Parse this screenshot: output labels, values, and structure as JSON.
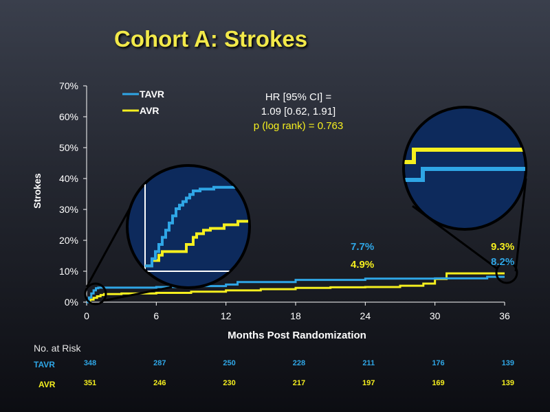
{
  "title": "Cohort A: Strokes",
  "colors": {
    "tavr": "#2fa6e6",
    "avr": "#f5ef1f",
    "circle_fill": "#0d2a5c",
    "axis_text": "#ffffff"
  },
  "chart_data": {
    "type": "line",
    "title": "Cohort A: Strokes",
    "xlabel": "Months Post Randomization",
    "ylabel": "Strokes",
    "xlim": [
      0,
      36
    ],
    "ylim": [
      0,
      70
    ],
    "x_ticks": [
      0,
      6,
      12,
      18,
      24,
      30,
      36
    ],
    "y_ticks": [
      "0%",
      "10%",
      "20%",
      "30%",
      "40%",
      "50%",
      "60%",
      "70%"
    ],
    "legend": [
      "TAVR",
      "AVR"
    ],
    "legend_position": "top-left",
    "grid": false,
    "annotation": {
      "line1": "HR [95% CI] =",
      "line2": "1.09 [0.62, 1.91]",
      "line3": "p (log rank) = 0.763"
    },
    "series": [
      {
        "name": "TAVR",
        "x": [
          0,
          0.2,
          0.4,
          0.6,
          0.8,
          1.0,
          3,
          6,
          9,
          12,
          13,
          18,
          24,
          30,
          34.5,
          36
        ],
        "y": [
          0,
          1.5,
          2.8,
          3.8,
          4.5,
          4.7,
          4.7,
          4.9,
          5.2,
          5.7,
          6.5,
          7.2,
          7.6,
          7.7,
          8.2,
          8.2
        ],
        "end_label": "7.7%",
        "end_label2": "8.2%"
      },
      {
        "name": "AVR",
        "x": [
          0,
          0.3,
          0.6,
          0.9,
          1.2,
          1.5,
          3,
          6,
          9,
          12,
          15,
          18,
          21,
          24,
          27,
          29,
          30,
          31,
          36
        ],
        "y": [
          0,
          0.8,
          1.4,
          1.9,
          2.3,
          2.6,
          2.8,
          3.0,
          3.4,
          3.8,
          4.2,
          4.6,
          4.8,
          4.9,
          5.3,
          6.0,
          7.5,
          9.3,
          9.3
        ],
        "end_label": "4.9%",
        "end_label2": "9.3%"
      }
    ]
  },
  "risk_table": {
    "heading": "No. at Risk",
    "rows": [
      {
        "label": "TAVR",
        "values": [
          "348",
          "287",
          "250",
          "228",
          "211",
          "176",
          "139"
        ]
      },
      {
        "label": "AVR",
        "values": [
          "351",
          "246",
          "230",
          "217",
          "197",
          "169",
          "139"
        ]
      }
    ]
  }
}
